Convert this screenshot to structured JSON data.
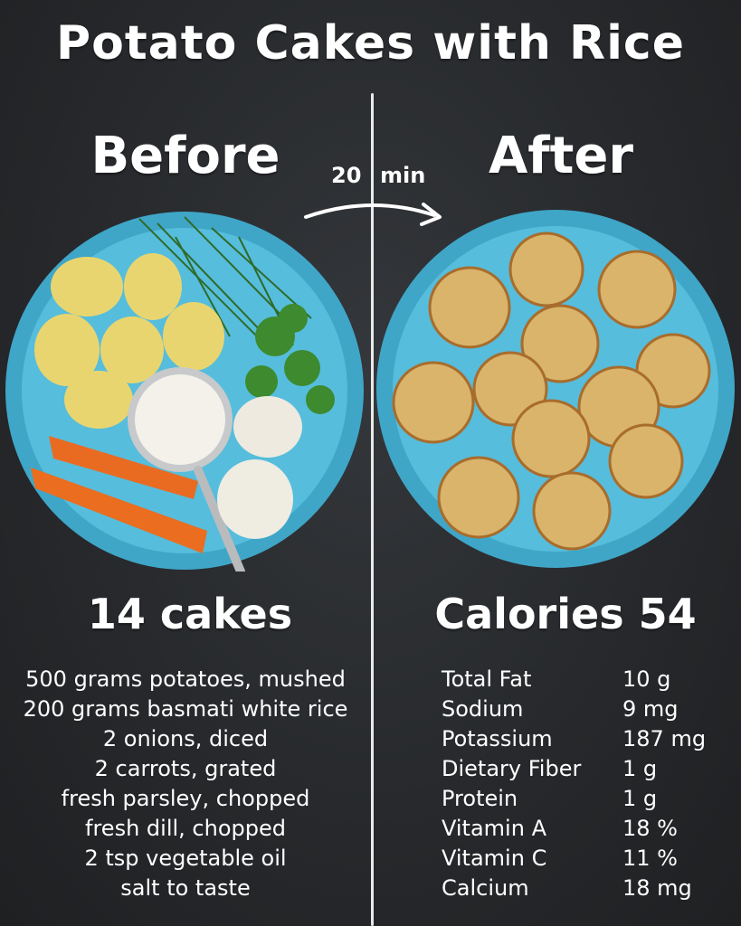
{
  "title": "Potato Cakes with Rice",
  "before_label": "Before",
  "after_label": "After",
  "time": {
    "number": "20",
    "unit": "min"
  },
  "yield_label": "14 cakes",
  "calories_label": "Calories 54",
  "ingredients": [
    "500 grams potatoes, mushed",
    "200 grams basmati white rice",
    "2 onions, diced",
    "2 carrots, grated",
    "fresh parsley, chopped",
    "fresh dill, chopped",
    "2 tsp vegetable oil",
    "salt to taste"
  ],
  "nutrition": [
    {
      "name": "Total Fat",
      "value": "10 g"
    },
    {
      "name": "Sodium",
      "value": "9 mg"
    },
    {
      "name": "Potassium",
      "value": "187 mg"
    },
    {
      "name": "Dietary Fiber",
      "value": "1 g"
    },
    {
      "name": "Protein",
      "value": "1 g"
    },
    {
      "name": "Vitamin A",
      "value": "18 %"
    },
    {
      "name": "Vitamin C",
      "value": "11 %"
    },
    {
      "name": "Calcium",
      "value": "18 mg"
    }
  ],
  "colors": {
    "background": "#2b2d30",
    "plate": "#4fb5d6",
    "text": "#ffffff"
  },
  "icons": [
    "arrow-icon"
  ]
}
